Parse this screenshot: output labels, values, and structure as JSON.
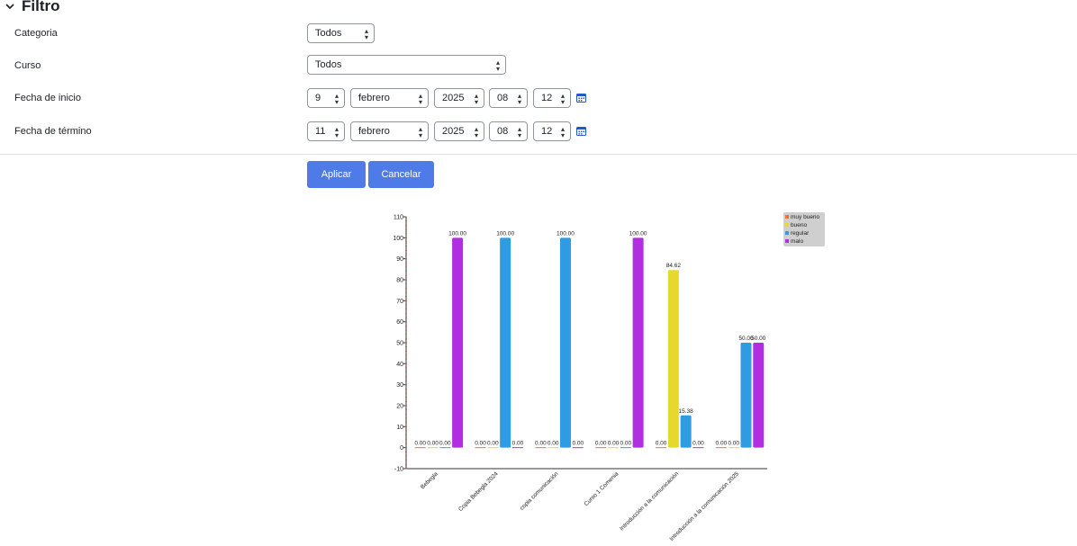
{
  "filter": {
    "title": "Filtro",
    "categoria": {
      "label": "Categoria",
      "value": "Todos"
    },
    "curso": {
      "label": "Curso",
      "value": "Todos"
    },
    "fecha_inicio": {
      "label": "Fecha de inicio",
      "day": "9",
      "month": "febrero",
      "year": "2025",
      "hour": "08",
      "minute": "12"
    },
    "fecha_termino": {
      "label": "Fecha de término",
      "day": "11",
      "month": "febrero",
      "year": "2025",
      "hour": "08",
      "minute": "12"
    },
    "apply_label": "Aplicar",
    "cancel_label": "Cancelar"
  },
  "chart_data": {
    "type": "bar",
    "categories": [
      "Bebegla",
      "Copia Bebegla 2024",
      "copia comunicación",
      "Curso 1 Comenia",
      "Introducción a la comunicación",
      "Introducción a la comunicación 2025"
    ],
    "series": [
      {
        "name": "muy bueno",
        "color": "#e8733a",
        "values": [
          0,
          0,
          0,
          0,
          0,
          0
        ]
      },
      {
        "name": "bueno",
        "color": "#e5d92e",
        "values": [
          0,
          0,
          0,
          0,
          84.62,
          0
        ]
      },
      {
        "name": "regular",
        "color": "#2f9be3",
        "values": [
          0,
          100,
          100,
          0,
          15.38,
          50
        ]
      },
      {
        "name": "malo",
        "color": "#b12fe0",
        "values": [
          100,
          0,
          0,
          100,
          0,
          50
        ]
      }
    ],
    "ylim": [
      -10,
      110
    ],
    "yticks": [
      -10,
      0,
      10,
      20,
      30,
      40,
      50,
      60,
      70,
      80,
      90,
      100,
      110
    ],
    "legend_position": "top-right"
  }
}
